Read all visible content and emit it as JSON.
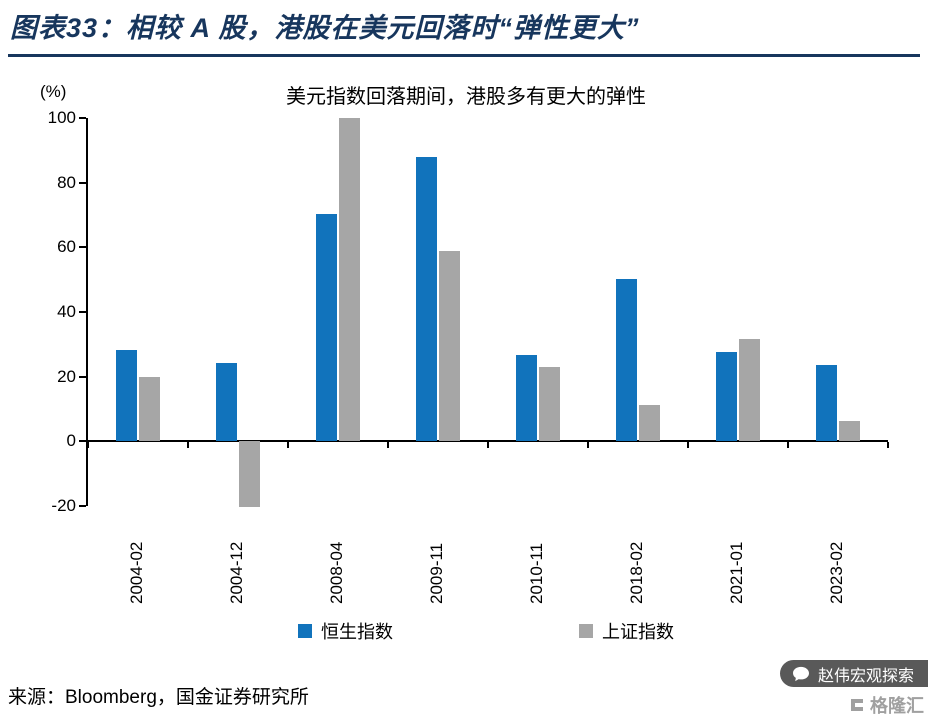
{
  "header": {
    "title": "图表33：相较 A 股，港股在美元回落时“弹性更大”"
  },
  "chart_data": {
    "type": "bar",
    "title": "美元指数回落期间，港股多有更大的弹性",
    "unit_label": "(%)",
    "categories": [
      "2004-02",
      "2004-12",
      "2008-04",
      "2009-11",
      "2010-11",
      "2018-02",
      "2021-01",
      "2023-02"
    ],
    "series": [
      {
        "name": "恒生指数",
        "color": "#1173bc",
        "values": [
          28.4,
          24.2,
          70.3,
          87.9,
          26.6,
          50.2,
          27.6,
          23.6
        ]
      },
      {
        "name": "上证指数",
        "color": "#a6a6a6",
        "values": [
          19.8,
          -20.3,
          100.0,
          58.8,
          22.9,
          11.1,
          31.6,
          6.3
        ]
      }
    ],
    "ylim": [
      -20,
      100
    ],
    "yticks": [
      100,
      80,
      60,
      40,
      20,
      0,
      -20
    ],
    "legend_position": "bottom",
    "grid": false
  },
  "footer": {
    "source": "来源：Bloomberg，国金证券研究所"
  },
  "watermark": {
    "wechat": "赵伟宏观探索",
    "logo": "格隆汇"
  },
  "colors": {
    "title_navy": "#17365d",
    "axis_black": "#000000"
  }
}
